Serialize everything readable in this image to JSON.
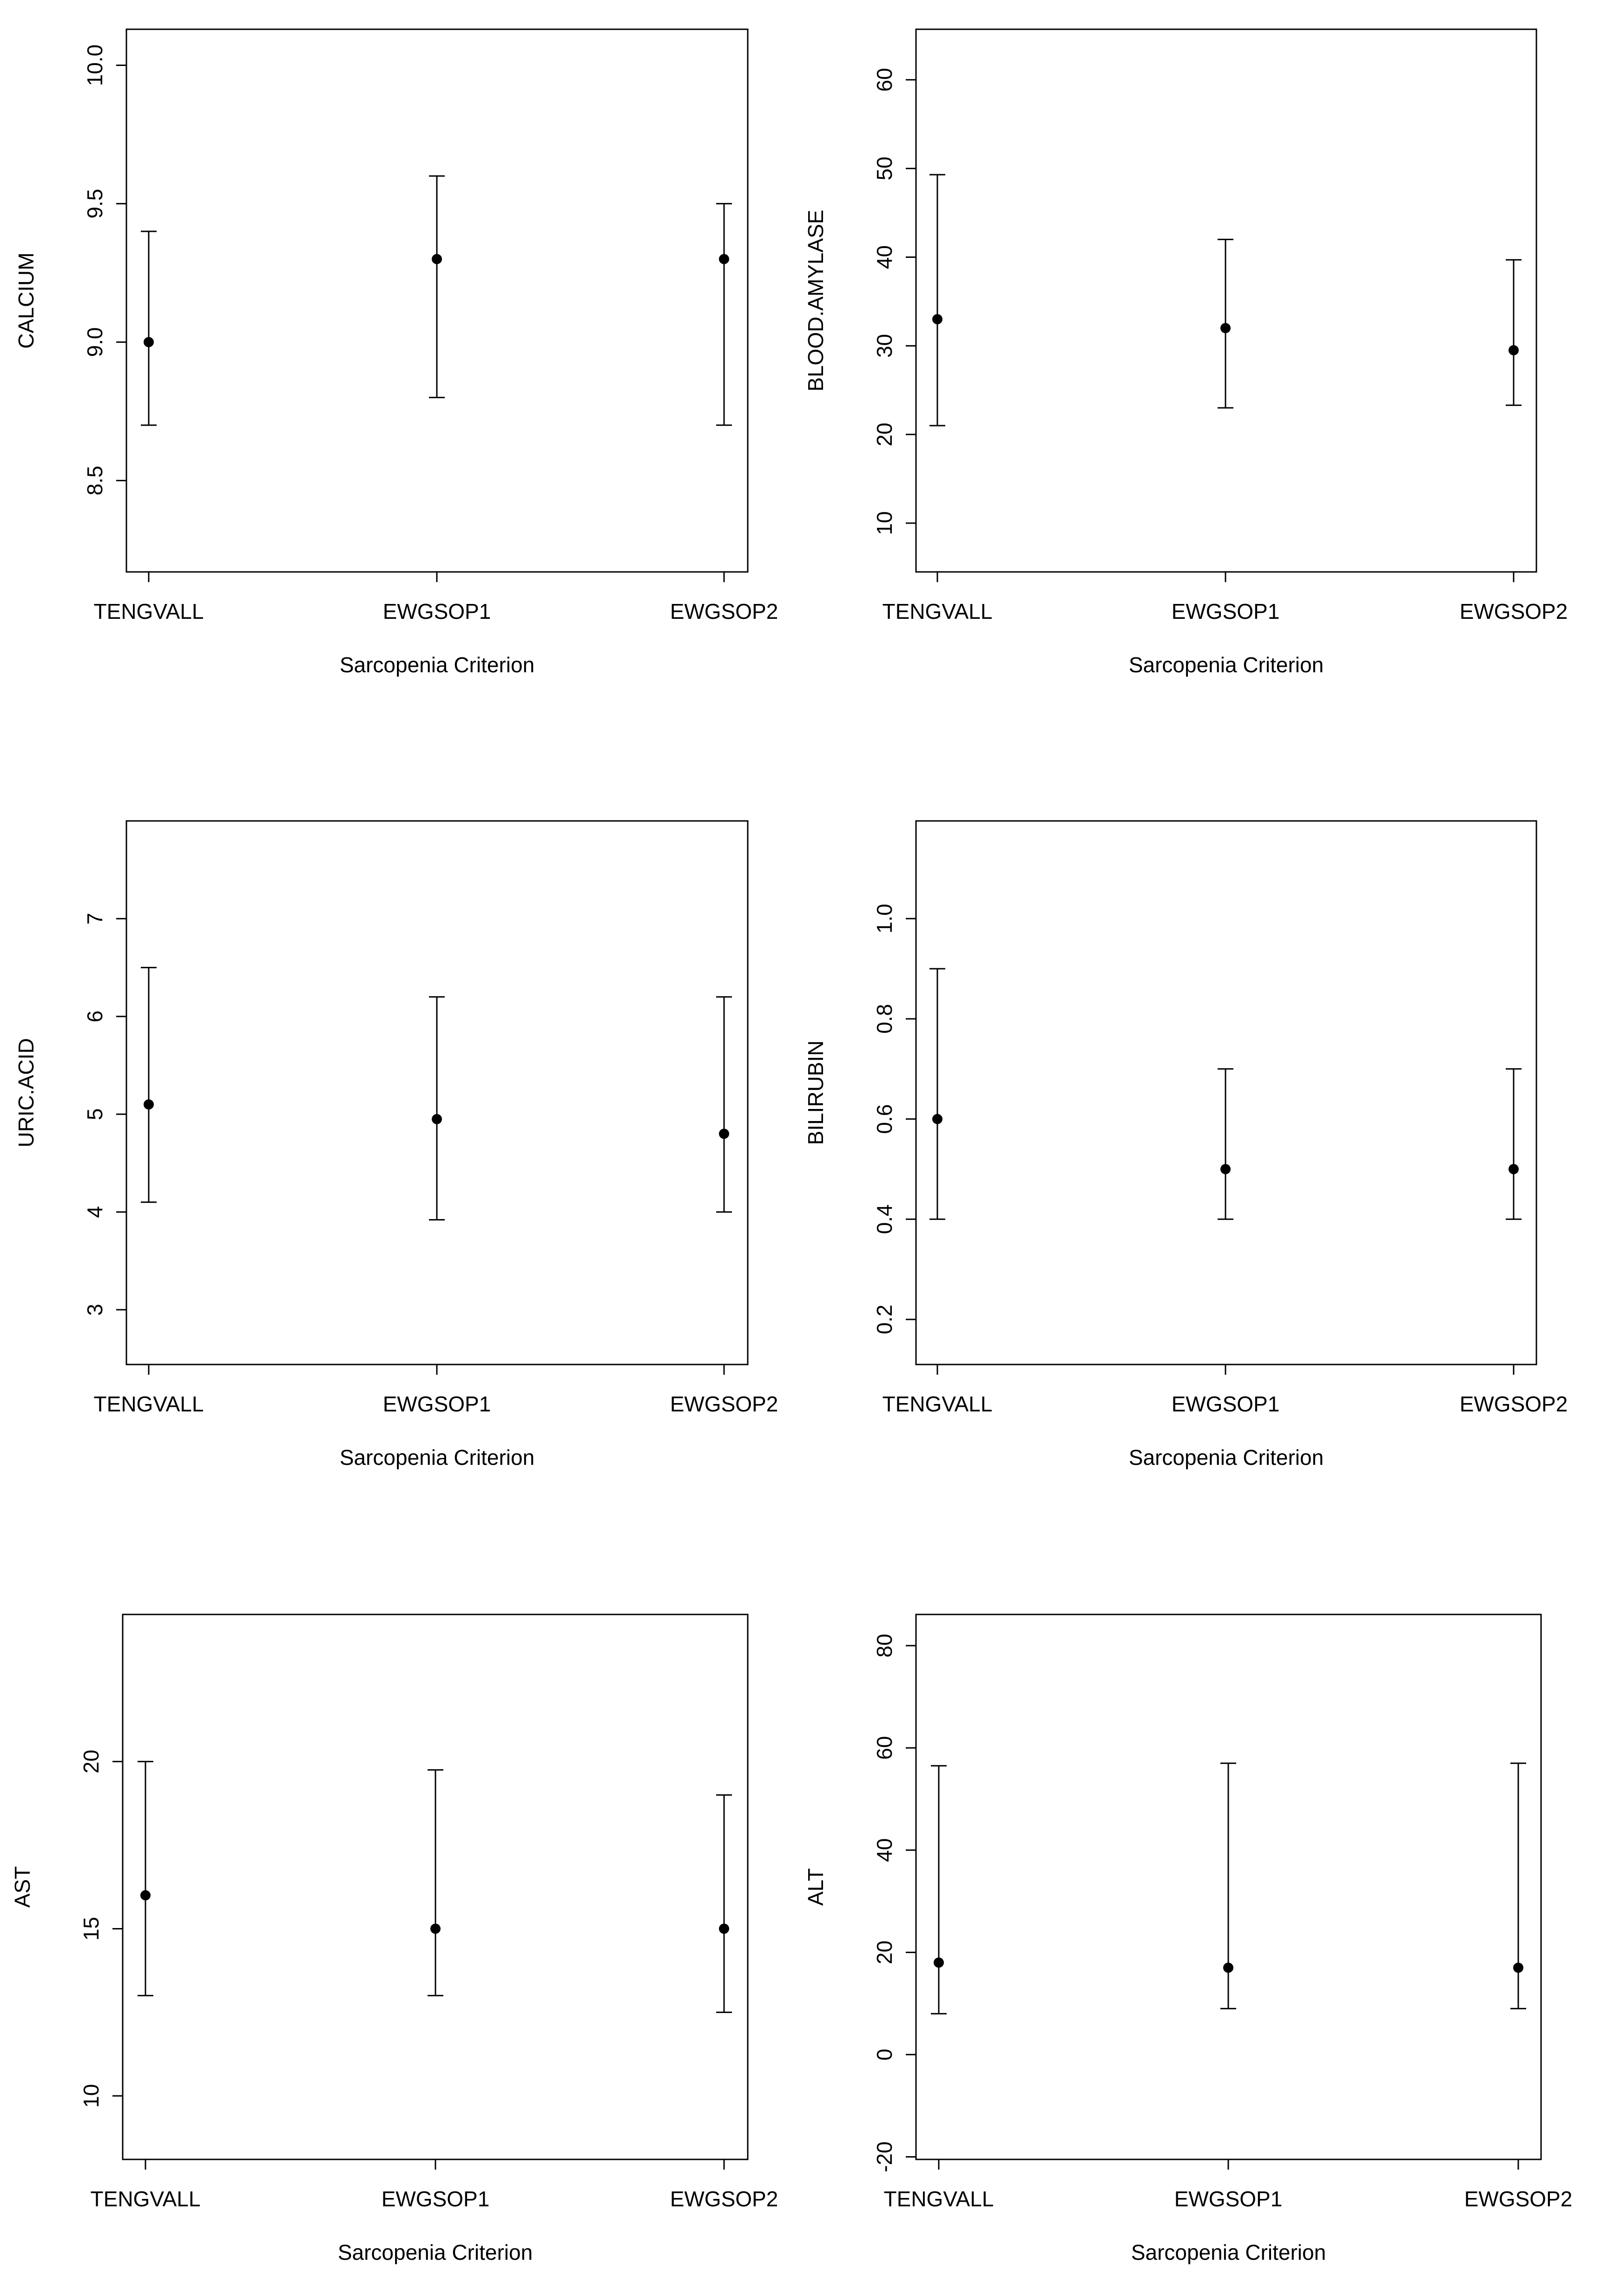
{
  "colors": {
    "ink": "#000000",
    "background": "#ffffff"
  },
  "chart_data": [
    {
      "type": "errorbar",
      "title": "",
      "xlabel": "Sarcopenia Criterion",
      "ylabel": "CALCIUM",
      "ylim": [
        8.17,
        10.13
      ],
      "yticks": [
        "8.5",
        "9.0",
        "9.5",
        "10.0"
      ],
      "ytick_values": [
        8.5,
        9.0,
        9.5,
        10.0
      ],
      "categories": [
        "TENGVALL",
        "EWGSOP1",
        "EWGSOP2"
      ],
      "center": [
        9.0,
        9.3,
        9.3
      ],
      "lower": [
        8.7,
        8.8,
        8.7
      ],
      "upper": [
        9.4,
        9.6,
        9.5
      ]
    },
    {
      "type": "errorbar",
      "title": "",
      "xlabel": "Sarcopenia Criterion",
      "ylabel": "BLOOD.AMYLASE",
      "ylim": [
        4.5,
        65.7
      ],
      "yticks": [
        "10",
        "20",
        "30",
        "40",
        "50",
        "60"
      ],
      "ytick_values": [
        10,
        20,
        30,
        40,
        50,
        60
      ],
      "categories": [
        "TENGVALL",
        "EWGSOP1",
        "EWGSOP2"
      ],
      "center": [
        33,
        32,
        29.5
      ],
      "lower": [
        21,
        23,
        23.3
      ],
      "upper": [
        49.3,
        42,
        39.7
      ]
    },
    {
      "type": "errorbar",
      "title": "",
      "xlabel": "Sarcopenia Criterion",
      "ylabel": "URIC.ACID",
      "ylim": [
        2.44,
        8.0
      ],
      "yticks": [
        "3",
        "4",
        "5",
        "6",
        "7"
      ],
      "ytick_values": [
        3,
        4,
        5,
        6,
        7
      ],
      "categories": [
        "TENGVALL",
        "EWGSOP1",
        "EWGSOP2"
      ],
      "center": [
        5.1,
        4.95,
        4.8
      ],
      "lower": [
        4.1,
        3.92,
        4.0
      ],
      "upper": [
        6.5,
        6.2,
        6.2
      ]
    },
    {
      "type": "errorbar",
      "title": "",
      "xlabel": "Sarcopenia Criterion",
      "ylabel": "BILIRUBIN",
      "ylim": [
        0.11,
        1.195
      ],
      "yticks": [
        "0.2",
        "0.4",
        "0.6",
        "0.8",
        "1.0"
      ],
      "ytick_values": [
        0.2,
        0.4,
        0.6,
        0.8,
        1.0
      ],
      "categories": [
        "TENGVALL",
        "EWGSOP1",
        "EWGSOP2"
      ],
      "center": [
        0.6,
        0.5,
        0.5
      ],
      "lower": [
        0.4,
        0.4,
        0.4
      ],
      "upper": [
        0.9,
        0.7,
        0.7
      ]
    },
    {
      "type": "errorbar",
      "title": "",
      "xlabel": "Sarcopenia Criterion",
      "ylabel": "AST",
      "ylim": [
        8.1,
        24.4
      ],
      "yticks": [
        "10",
        "15",
        "20"
      ],
      "ytick_values": [
        10,
        15,
        20
      ],
      "categories": [
        "TENGVALL",
        "EWGSOP1",
        "EWGSOP2"
      ],
      "center": [
        16,
        15,
        15
      ],
      "lower": [
        13,
        13,
        12.5
      ],
      "upper": [
        20,
        19.75,
        19
      ]
    },
    {
      "type": "errorbar",
      "title": "",
      "xlabel": "Sarcopenia Criterion",
      "ylabel": "ALT",
      "ylim": [
        -20.5,
        86.1
      ],
      "yticks": [
        "-20",
        "0",
        "20",
        "40",
        "60",
        "80"
      ],
      "ytick_values": [
        -20,
        0,
        20,
        40,
        60,
        80
      ],
      "categories": [
        "TENGVALL",
        "EWGSOP1",
        "EWGSOP2"
      ],
      "center": [
        18,
        17,
        17
      ],
      "lower": [
        8,
        9,
        9
      ],
      "upper": [
        56.5,
        57,
        57
      ]
    }
  ]
}
